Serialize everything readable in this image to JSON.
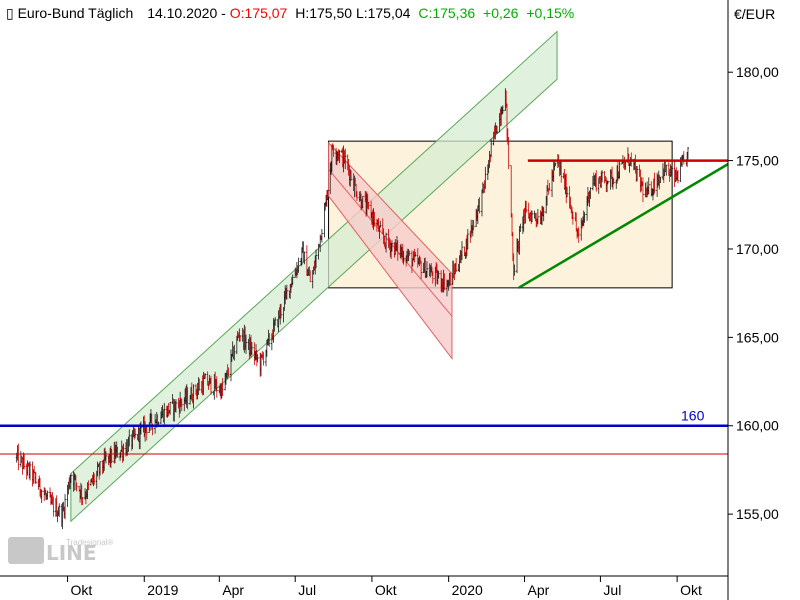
{
  "header": {
    "title": "Euro-Bund Täglich",
    "date": "14.10.2020",
    "open": "O:175,07",
    "high": "H:175,50",
    "low": "L:175,04",
    "close": "C:175,36",
    "change": "+0,26",
    "change_pct": "+0,15%"
  },
  "currency_label": "€/EUR",
  "watermark": {
    "brand": "Tradesignal",
    "text": "online"
  },
  "colors": {
    "up": "#00b000",
    "down": "#ff0000",
    "level_line": "#0000cc",
    "resistance": "#cc0000",
    "support": "#008800",
    "rect_fill": "#fdf3dc",
    "up_channel_fill": "#d6ecd2",
    "down_channel_fill": "#f8cccc"
  },
  "chart_data": {
    "type": "candlestick",
    "ylim": [
      151.5,
      182.5
    ],
    "yticks": [
      "155,00",
      "160,00",
      "165,00",
      "170,00",
      "175,00",
      "180,00"
    ],
    "ytick_values": [
      155,
      160,
      165,
      170,
      175,
      180
    ],
    "xticks": [
      "Okt",
      "2019",
      "Apr",
      "Jul",
      "Okt",
      "2020",
      "Apr",
      "Jul",
      "Okt"
    ],
    "xtick_dates": [
      "2018-10",
      "2019-01",
      "2019-04",
      "2019-07",
      "2019-10",
      "2020-01",
      "2020-04",
      "2020-07",
      "2020-10"
    ],
    "date_range": [
      "2018-07",
      "2020-10-14"
    ],
    "price_path": [
      [
        "2018-08-01",
        158.2
      ],
      [
        "2018-08-20",
        157.2
      ],
      [
        "2018-09-10",
        155.6
      ],
      [
        "2018-09-25",
        155.0
      ],
      [
        "2018-10-05",
        157.3
      ],
      [
        "2018-10-20",
        156.0
      ],
      [
        "2018-11-15",
        158.0
      ],
      [
        "2018-12-10",
        158.8
      ],
      [
        "2018-12-31",
        159.8
      ],
      [
        "2019-01-20",
        160.6
      ],
      [
        "2019-02-20",
        161.5
      ],
      [
        "2019-03-15",
        162.5
      ],
      [
        "2019-04-05",
        162.0
      ],
      [
        "2019-04-25",
        165.3
      ],
      [
        "2019-05-20",
        163.5
      ],
      [
        "2019-06-10",
        166.0
      ],
      [
        "2019-06-25",
        168.0
      ],
      [
        "2019-07-10",
        169.8
      ],
      [
        "2019-07-20",
        168.0
      ],
      [
        "2019-08-05",
        172.0
      ],
      [
        "2019-08-15",
        175.8
      ],
      [
        "2019-08-30",
        175.0
      ],
      [
        "2019-09-15",
        173.0
      ],
      [
        "2019-09-30",
        172.0
      ],
      [
        "2019-10-15",
        170.5
      ],
      [
        "2019-11-15",
        169.5
      ],
      [
        "2019-12-15",
        168.5
      ],
      [
        "2019-12-31",
        168.0
      ],
      [
        "2020-01-20",
        170.0
      ],
      [
        "2020-02-10",
        173.0
      ],
      [
        "2020-02-25",
        176.5
      ],
      [
        "2020-03-09",
        178.8
      ],
      [
        "2020-03-19",
        168.8
      ],
      [
        "2020-03-31",
        172.0
      ],
      [
        "2020-04-20",
        171.8
      ],
      [
        "2020-05-10",
        175.0
      ],
      [
        "2020-05-25",
        172.8
      ],
      [
        "2020-06-05",
        170.5
      ],
      [
        "2020-06-20",
        173.8
      ],
      [
        "2020-07-15",
        174.0
      ],
      [
        "2020-08-05",
        175.1
      ],
      [
        "2020-08-25",
        173.0
      ],
      [
        "2020-09-15",
        174.5
      ],
      [
        "2020-09-30",
        174.0
      ],
      [
        "2020-10-14",
        175.36
      ]
    ],
    "annotations": {
      "horizontal_line": {
        "value": 160,
        "label": "160"
      },
      "thin_red_line": {
        "value": 158.4
      },
      "rectangle": {
        "x": [
          "2019-08-10",
          "2020-09-25"
        ],
        "y": [
          167.8,
          176.1
        ]
      },
      "up_channel": {
        "x": [
          "2018-10-05",
          "2020-05-10"
        ],
        "lower_start": 154.6,
        "upper_start": 157.3,
        "upper_end": 182.3
      },
      "down_channel": {
        "x": [
          "2019-08-10",
          "2020-01-05"
        ],
        "upper": [
          176.0,
          168.6
        ],
        "lower": [
          173.0,
          163.8
        ]
      },
      "resistance_line": {
        "x": [
          "2020-04-05",
          "2020-10-25"
        ],
        "value": 175.0
      },
      "support_line": {
        "x": [
          "2020-03-25",
          "2020-10-25"
        ],
        "values": [
          167.8,
          174.8
        ]
      }
    }
  }
}
